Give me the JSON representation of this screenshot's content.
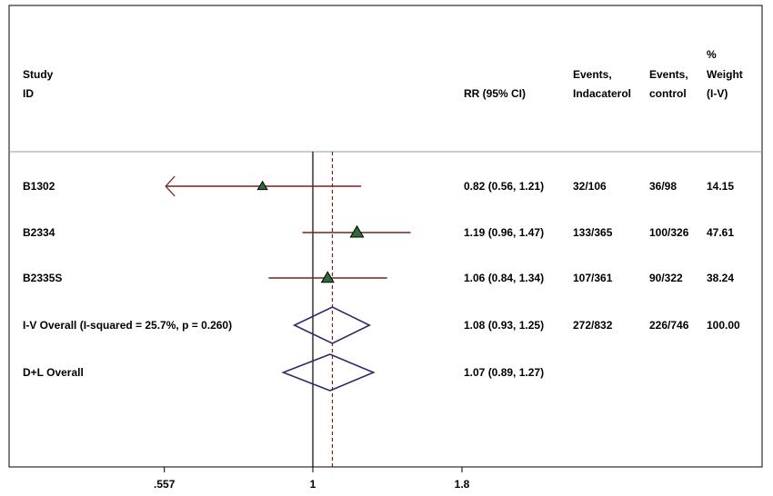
{
  "chart_data": {
    "type": "forest",
    "scale": "log",
    "x_ticks": [
      {
        "value": 0.557,
        "label": ".557"
      },
      {
        "value": 1,
        "label": "1"
      },
      {
        "value": 1.8,
        "label": "1.8"
      }
    ],
    "null_line": 1,
    "overall_line": 1.08,
    "headers": {
      "study": [
        "Study",
        "ID"
      ],
      "rr": "RR (95% CI)",
      "events_ind": [
        "Events,",
        "Indacaterol"
      ],
      "events_ctrl": [
        "Events,",
        "control"
      ],
      "weight": [
        "%",
        "Weight",
        "(I-V)"
      ]
    },
    "studies": [
      {
        "id": "B1302",
        "rr": 0.82,
        "lo": 0.56,
        "hi": 1.21,
        "rr_label": "0.82 (0.56, 1.21)",
        "events_ind": "32/106",
        "events_ctrl": "36/98",
        "weight": "14.15",
        "arrow_left": true
      },
      {
        "id": "B2334",
        "rr": 1.19,
        "lo": 0.96,
        "hi": 1.47,
        "rr_label": "1.19 (0.96, 1.47)",
        "events_ind": "133/365",
        "events_ctrl": "100/326",
        "weight": "47.61",
        "arrow_left": false
      },
      {
        "id": "B2335S",
        "rr": 1.06,
        "lo": 0.84,
        "hi": 1.34,
        "rr_label": "1.06 (0.84, 1.34)",
        "events_ind": "107/361",
        "events_ctrl": "90/322",
        "weight": "38.24",
        "arrow_left": false
      }
    ],
    "overall": [
      {
        "id": "I-V Overall  (I-squared = 25.7%, p = 0.260)",
        "rr": 1.08,
        "lo": 0.93,
        "hi": 1.25,
        "rr_label": "1.08 (0.93, 1.25)",
        "events_ind": "272/832",
        "events_ctrl": "226/746",
        "weight": "100.00"
      },
      {
        "id": "D+L Overall",
        "rr": 1.07,
        "lo": 0.89,
        "hi": 1.27,
        "rr_label": "1.07 (0.89, 1.27)",
        "events_ind": "",
        "events_ctrl": "",
        "weight": ""
      }
    ],
    "colors": {
      "ci_line": "#7a1f1f",
      "marker": "#2e6b3a",
      "diamond": "#2b2b6e",
      "null_line": "#000000",
      "overall_line": "#7a1f1f"
    }
  }
}
